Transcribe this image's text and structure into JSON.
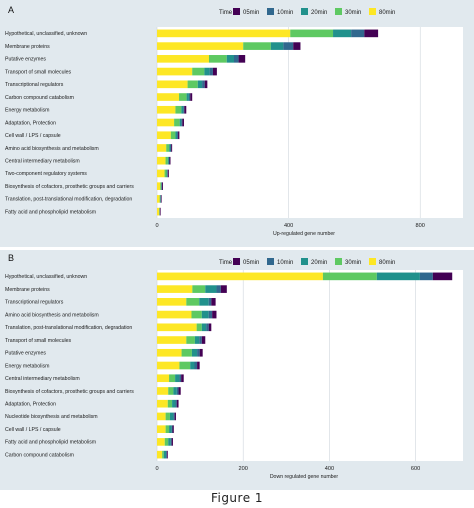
{
  "figure": {
    "caption": "Figure 1"
  },
  "legend": {
    "title": "Time",
    "keys": [
      "05min",
      "10min",
      "20min",
      "30min",
      "80min"
    ],
    "colors": {
      "05min": "#440154",
      "10min": "#31688e",
      "20min": "#21918c",
      "30min": "#5ec962",
      "80min": "#fde725"
    }
  },
  "chart_data": [
    {
      "panel": "A",
      "type": "bar",
      "orientation": "horizontal",
      "stacked": true,
      "xlabel": "Up-regulated gene number",
      "xlim": [
        0,
        930
      ],
      "xticks": [
        0,
        400,
        800
      ],
      "xtick_labels": [
        "0",
        "400",
        "800"
      ],
      "grid": true,
      "legend_position": "top-right",
      "categories": [
        "Hypothetical, unclassified, unknown",
        "Membrane proteins",
        "Putative enzymes",
        "Transport of small molecules",
        "Transcriptional regulators",
        "Carbon compound catabolism",
        "Energy metabolism",
        "Adaptation, Protection",
        "Cell wall / LPS / capsule",
        "Amino acid biosynthesis and metabolism",
        "Central intermediary metabolism",
        "Two-component regulatory systems",
        "Biosynthesis of cofactors, prosthetic groups and carriers",
        "Translation, post-translational modification, degradation",
        "Fatty acid and phospholipid metabolism"
      ],
      "series": [
        {
          "name": "80min",
          "values": [
            405,
            262,
            158,
            107,
            93,
            67,
            56,
            52,
            42,
            28,
            26,
            23,
            10,
            8,
            7
          ]
        },
        {
          "name": "30min",
          "values": [
            130,
            84,
            54,
            37,
            31,
            23,
            18,
            17,
            14,
            9,
            7,
            6,
            3,
            2,
            1
          ]
        },
        {
          "name": "20min",
          "values": [
            55,
            38,
            22,
            16,
            13,
            7,
            6,
            5,
            5,
            4,
            3,
            2,
            1,
            1,
            0
          ]
        },
        {
          "name": "10min",
          "values": [
            40,
            30,
            14,
            10,
            8,
            4,
            3,
            3,
            3,
            2,
            2,
            2,
            1,
            1,
            1
          ]
        },
        {
          "name": "05min",
          "values": [
            42,
            22,
            20,
            12,
            8,
            6,
            6,
            5,
            4,
            3,
            3,
            3,
            3,
            2,
            2
          ]
        }
      ]
    },
    {
      "panel": "B",
      "type": "bar",
      "orientation": "horizontal",
      "stacked": true,
      "xlabel": "Down regulated gene number",
      "xlim": [
        0,
        710
      ],
      "xticks": [
        0,
        200,
        400,
        600
      ],
      "xtick_labels": [
        "0",
        "200",
        "400",
        "600"
      ],
      "grid": true,
      "legend_position": "top-right",
      "categories": [
        "Hypothetical, unclassified, unknown",
        "Membrane proteins",
        "Transcriptional regulators",
        "Amino acid biosynthesis and metabolism",
        "Translation, post-translational modification, degradation",
        "Transport of small molecules",
        "Putative enzymes",
        "Energy metabolism",
        "Central intermediary metabolism",
        "Biosynthesis of cofactors, prosthetic groups and carriers",
        "Adaptation, Protection",
        "Nucleotide biosynthesis and metabolism",
        "Cell wall / LPS / capsule",
        "Fatty acid and phospholipid metabolism",
        "Carbon compound catabolism"
      ],
      "series": [
        {
          "name": "80min",
          "values": [
            385,
            82,
            68,
            80,
            92,
            68,
            57,
            52,
            28,
            26,
            25,
            20,
            20,
            18,
            12
          ]
        },
        {
          "name": "30min",
          "values": [
            125,
            30,
            30,
            24,
            12,
            20,
            24,
            25,
            14,
            12,
            10,
            10,
            8,
            8,
            4
          ]
        },
        {
          "name": "20min",
          "values": [
            100,
            26,
            22,
            16,
            10,
            10,
            12,
            10,
            10,
            8,
            8,
            8,
            6,
            6,
            5
          ]
        },
        {
          "name": "10min",
          "values": [
            30,
            10,
            6,
            8,
            6,
            6,
            6,
            6,
            4,
            4,
            3,
            3,
            2,
            2,
            2
          ]
        },
        {
          "name": "05min",
          "values": [
            45,
            14,
            10,
            10,
            6,
            8,
            7,
            6,
            6,
            5,
            4,
            3,
            3,
            3,
            2
          ]
        }
      ]
    }
  ]
}
